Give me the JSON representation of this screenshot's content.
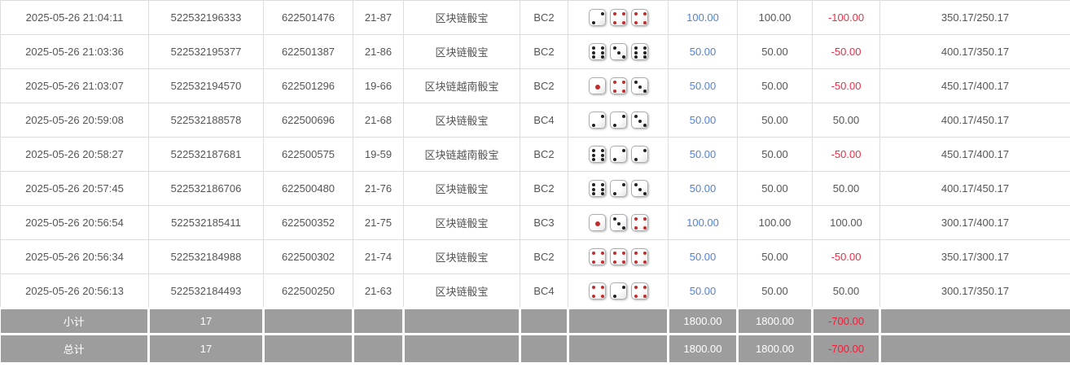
{
  "colors": {
    "accent_blue": "#5182d6",
    "negative_red": "#ee2c44",
    "summary_bg": "#9d9d9d",
    "summary_text": "#ffffff",
    "grid_border": "#dcdcdc",
    "dice_pip_black": "#222222",
    "dice_pip_red": "#c42b2b"
  },
  "table": {
    "rows": [
      {
        "time": "2025-05-26 21:04:11",
        "bet_id": "522532196333",
        "round_id": "622501476",
        "period": "21-87",
        "game": "区块链骰宝",
        "table_code": "BC2",
        "dice": [
          {
            "v": 2,
            "c": "black"
          },
          {
            "v": 4,
            "c": "red"
          },
          {
            "v": 4,
            "c": "red"
          }
        ],
        "amount": "100.00",
        "valid": "100.00",
        "winloss": "-100.00",
        "balance": "350.17/250.17"
      },
      {
        "time": "2025-05-26 21:03:36",
        "bet_id": "522532195377",
        "round_id": "622501387",
        "period": "21-86",
        "game": "区块链骰宝",
        "table_code": "BC2",
        "dice": [
          {
            "v": 6,
            "c": "black"
          },
          {
            "v": 3,
            "c": "black"
          },
          {
            "v": 6,
            "c": "black"
          }
        ],
        "amount": "50.00",
        "valid": "50.00",
        "winloss": "-50.00",
        "balance": "400.17/350.17"
      },
      {
        "time": "2025-05-26 21:03:07",
        "bet_id": "522532194570",
        "round_id": "622501296",
        "period": "19-66",
        "game": "区块链越南骰宝",
        "table_code": "BC2",
        "dice": [
          {
            "v": 1,
            "c": "red"
          },
          {
            "v": 4,
            "c": "red"
          },
          {
            "v": 3,
            "c": "black"
          }
        ],
        "amount": "50.00",
        "valid": "50.00",
        "winloss": "-50.00",
        "balance": "450.17/400.17"
      },
      {
        "time": "2025-05-26 20:59:08",
        "bet_id": "522532188578",
        "round_id": "622500696",
        "period": "21-68",
        "game": "区块链骰宝",
        "table_code": "BC4",
        "dice": [
          {
            "v": 2,
            "c": "black"
          },
          {
            "v": 2,
            "c": "black"
          },
          {
            "v": 3,
            "c": "black"
          }
        ],
        "amount": "50.00",
        "valid": "50.00",
        "winloss": "50.00",
        "balance": "400.17/450.17"
      },
      {
        "time": "2025-05-26 20:58:27",
        "bet_id": "522532187681",
        "round_id": "622500575",
        "period": "19-59",
        "game": "区块链越南骰宝",
        "table_code": "BC2",
        "dice": [
          {
            "v": 6,
            "c": "black"
          },
          {
            "v": 2,
            "c": "black"
          },
          {
            "v": 2,
            "c": "black"
          }
        ],
        "amount": "50.00",
        "valid": "50.00",
        "winloss": "-50.00",
        "balance": "450.17/400.17"
      },
      {
        "time": "2025-05-26 20:57:45",
        "bet_id": "522532186706",
        "round_id": "622500480",
        "period": "21-76",
        "game": "区块链骰宝",
        "table_code": "BC2",
        "dice": [
          {
            "v": 6,
            "c": "black"
          },
          {
            "v": 2,
            "c": "black"
          },
          {
            "v": 3,
            "c": "black"
          }
        ],
        "amount": "50.00",
        "valid": "50.00",
        "winloss": "50.00",
        "balance": "400.17/450.17"
      },
      {
        "time": "2025-05-26 20:56:54",
        "bet_id": "522532185411",
        "round_id": "622500352",
        "period": "21-75",
        "game": "区块链骰宝",
        "table_code": "BC3",
        "dice": [
          {
            "v": 1,
            "c": "red"
          },
          {
            "v": 3,
            "c": "black"
          },
          {
            "v": 4,
            "c": "red"
          }
        ],
        "amount": "100.00",
        "valid": "100.00",
        "winloss": "100.00",
        "balance": "300.17/400.17"
      },
      {
        "time": "2025-05-26 20:56:34",
        "bet_id": "522532184988",
        "round_id": "622500302",
        "period": "21-74",
        "game": "区块链骰宝",
        "table_code": "BC2",
        "dice": [
          {
            "v": 4,
            "c": "red"
          },
          {
            "v": 4,
            "c": "red"
          },
          {
            "v": 4,
            "c": "red"
          }
        ],
        "amount": "50.00",
        "valid": "50.00",
        "winloss": "-50.00",
        "balance": "350.17/300.17"
      },
      {
        "time": "2025-05-26 20:56:13",
        "bet_id": "522532184493",
        "round_id": "622500250",
        "period": "21-63",
        "game": "区块链骰宝",
        "table_code": "BC4",
        "dice": [
          {
            "v": 4,
            "c": "red"
          },
          {
            "v": 2,
            "c": "black"
          },
          {
            "v": 4,
            "c": "red"
          }
        ],
        "amount": "50.00",
        "valid": "50.00",
        "winloss": "50.00",
        "balance": "300.17/350.17"
      }
    ],
    "summary": [
      {
        "label": "小计",
        "count": "17",
        "amount": "1800.00",
        "valid": "1800.00",
        "winloss": "-700.00"
      },
      {
        "label": "总计",
        "count": "17",
        "amount": "1800.00",
        "valid": "1800.00",
        "winloss": "-700.00"
      }
    ]
  }
}
